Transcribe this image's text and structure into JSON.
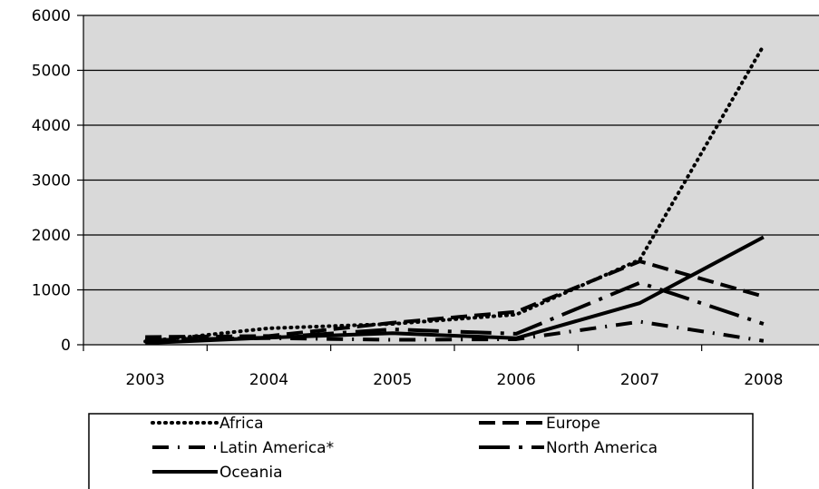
{
  "chart_data": {
    "type": "line",
    "title": "",
    "xlabel": "",
    "ylabel": "",
    "categories": [
      "2003",
      "2004",
      "2005",
      "2006",
      "2007",
      "2008"
    ],
    "ylim": [
      0,
      6000
    ],
    "yticks": [
      "0",
      "1000",
      "2000",
      "3000",
      "4000",
      "5000",
      "6000"
    ],
    "grid": true,
    "legend_position": "bottom",
    "series": [
      {
        "name": "Africa",
        "dash": "dotted",
        "values": [
          60,
          300,
          380,
          550,
          1550,
          5450
        ]
      },
      {
        "name": "Europe",
        "dash": "dashed",
        "values": [
          140,
          160,
          400,
          600,
          1520,
          880
        ]
      },
      {
        "name": "Latin America*",
        "dash": "dash-dot",
        "values": [
          100,
          120,
          90,
          100,
          420,
          70
        ]
      },
      {
        "name": "North America",
        "dash": "long-dash-dot",
        "values": [
          80,
          130,
          280,
          200,
          1130,
          380
        ]
      },
      {
        "name": "Oceania",
        "dash": "solid",
        "values": [
          30,
          130,
          210,
          120,
          760,
          1960
        ]
      }
    ]
  }
}
